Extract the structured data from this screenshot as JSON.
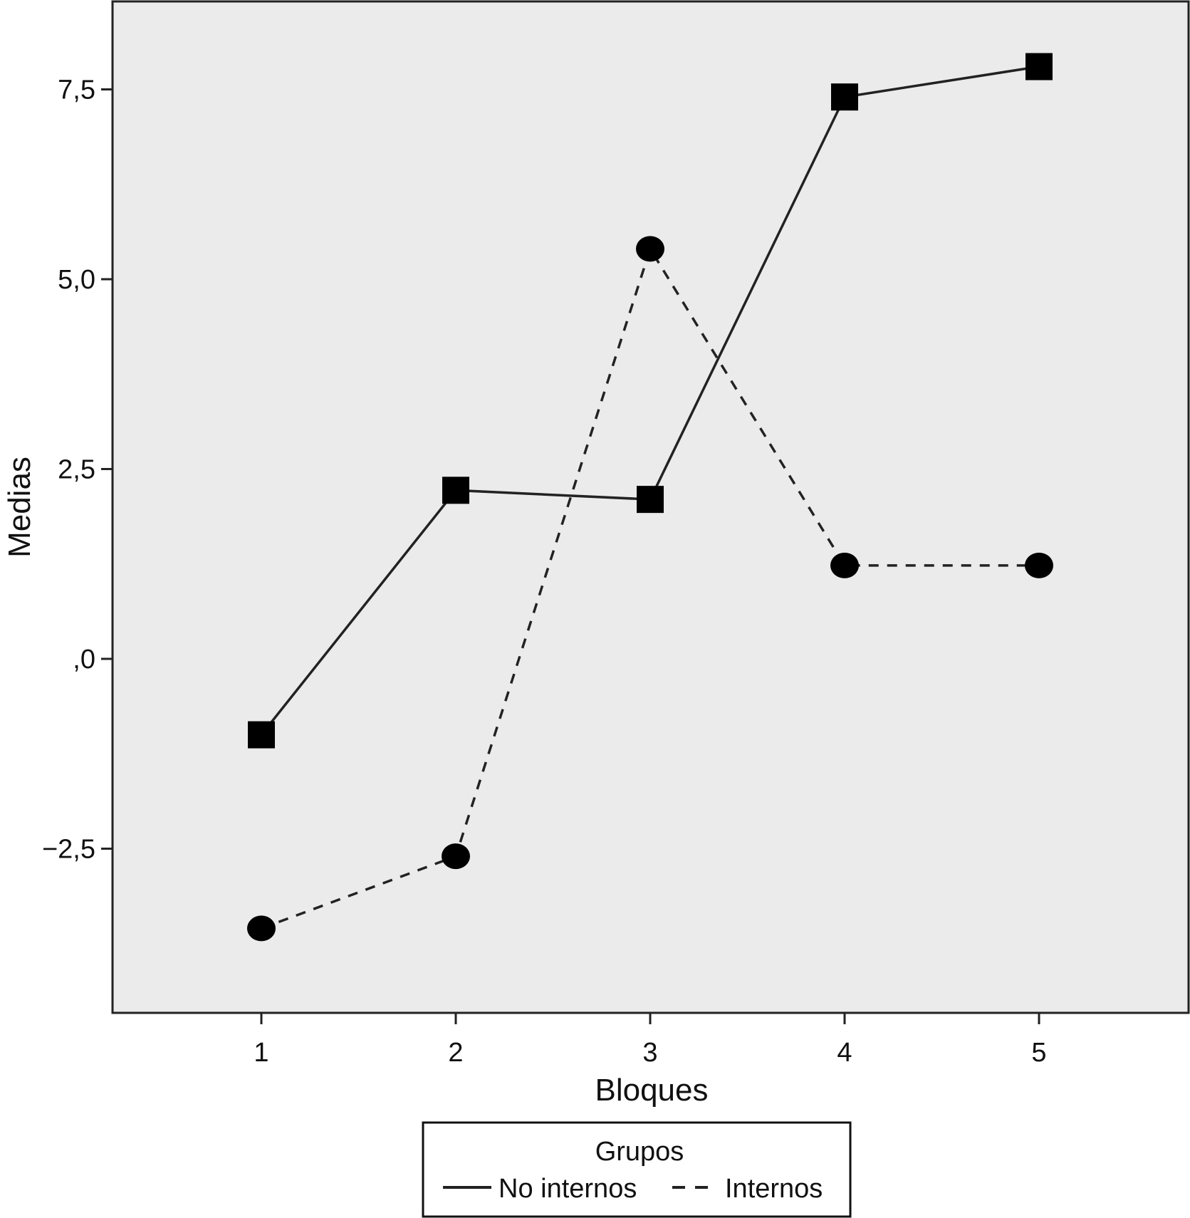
{
  "chart_data": {
    "type": "line",
    "title": "",
    "xlabel": "Bloques",
    "ylabel": "Medias",
    "categories": [
      "1",
      "2",
      "3",
      "4",
      "5"
    ],
    "yticks": [
      {
        "value": -2.5,
        "label": "−2,5"
      },
      {
        "value": 0,
        "label": ",0"
      },
      {
        "value": 2.5,
        "label": "2,5"
      },
      {
        "value": 5.0,
        "label": "5,0"
      },
      {
        "value": 7.5,
        "label": "7,5"
      }
    ],
    "ylim": [
      -4.6,
      8.7
    ],
    "grid": false,
    "legend": {
      "title": "Grupos",
      "position": "bottom"
    },
    "series": [
      {
        "name": "No internos",
        "line_style": "solid",
        "marker": "square",
        "color": "#000000",
        "values": [
          -1.0,
          2.22,
          2.1,
          7.4,
          7.8
        ]
      },
      {
        "name": "Internos",
        "line_style": "dashed",
        "marker": "circle",
        "color": "#000000",
        "values": [
          -3.55,
          -2.6,
          5.4,
          1.23,
          1.23
        ]
      }
    ],
    "colors": {
      "plot_background": "#ebebeb",
      "frame": "#222222"
    }
  }
}
